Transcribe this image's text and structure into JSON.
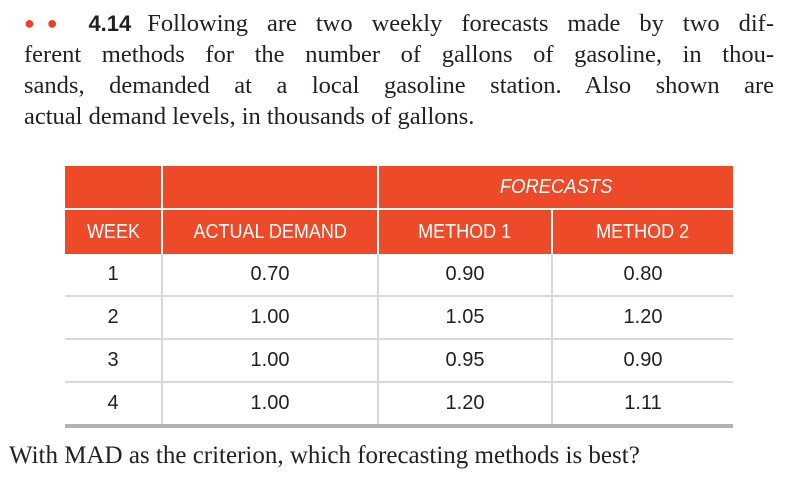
{
  "problem": {
    "number": "4.14",
    "lines": [
      "Following are two weekly forecasts made by two dif-",
      "ferent methods for the number of gallons of gasoline, in thou-",
      "sands, demanded at a local gasoline station. Also shown are",
      "actual demand levels, in thousands of gallons."
    ]
  },
  "table": {
    "group_header": "FORECASTS",
    "columns": [
      "WEEK",
      "ACTUAL DEMAND",
      "METHOD 1",
      "METHOD 2"
    ],
    "rows": [
      [
        "1",
        "0.70",
        "0.90",
        "0.80"
      ],
      [
        "2",
        "1.00",
        "1.05",
        "1.20"
      ],
      [
        "3",
        "1.00",
        "0.95",
        "0.90"
      ],
      [
        "4",
        "1.00",
        "1.20",
        "1.11"
      ]
    ],
    "header_color": "#ec4a28"
  },
  "question": "With MAD as the criterion, which forecasting methods is best?"
}
